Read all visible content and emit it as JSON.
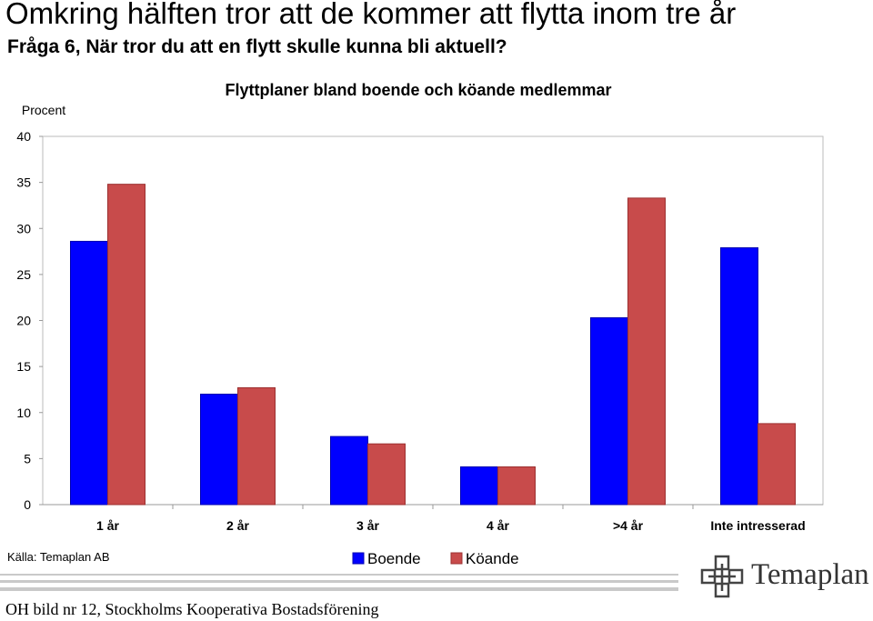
{
  "headline": "Omkring hälften tror att de kommer att flytta inom tre år",
  "subtitle": "Fråga 6, När tror du att en flytt skulle kunna bli aktuell?",
  "source": "Källa: Temaplan AB",
  "footer": "OH bild nr 12, Stockholms Kooperativa Bostadsförening",
  "logo": {
    "name": "Temaplan",
    "icon": "temaplan-logo-icon"
  },
  "colors": {
    "boende": "#0000ff",
    "koande": "#c84b4b"
  },
  "chart_data": {
    "type": "bar",
    "title": "Flyttplaner bland boende och köande medlemmar",
    "ylabel": "Procent",
    "categories": [
      "1 år",
      "2 år",
      "3 år",
      "4 år",
      ">4 år",
      "Inte intresserad"
    ],
    "series": [
      {
        "name": "Boende",
        "values": [
          28.6,
          12.0,
          7.4,
          4.1,
          20.3,
          27.9
        ]
      },
      {
        "name": "Köande",
        "values": [
          34.8,
          12.7,
          6.6,
          4.1,
          33.3,
          8.8
        ]
      }
    ],
    "ylim": [
      0,
      40
    ],
    "yticks": [
      "0",
      "5",
      "10",
      "15",
      "20",
      "25",
      "30",
      "35",
      "40"
    ],
    "legend": "bottom-center",
    "grid": false
  }
}
